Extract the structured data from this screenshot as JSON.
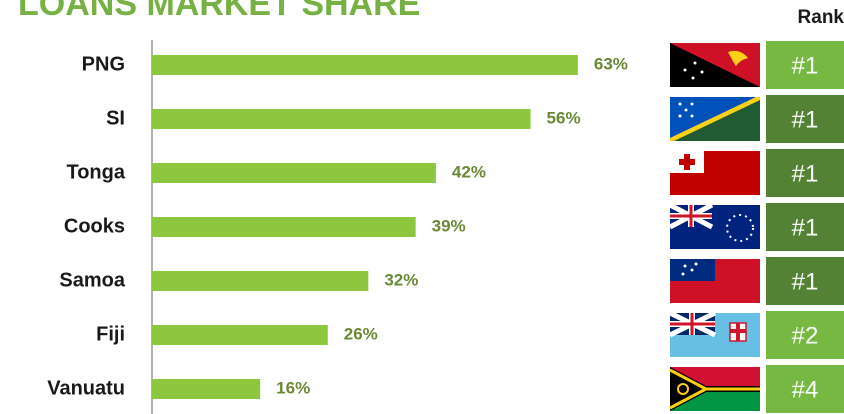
{
  "chart_data": {
    "type": "bar",
    "orientation": "horizontal",
    "title": "LOANS MARKET SHARE",
    "categories": [
      "PNG",
      "SI",
      "Tonga",
      "Cooks",
      "Samoa",
      "Fiji",
      "Vanuatu"
    ],
    "values": [
      63,
      56,
      42,
      39,
      32,
      26,
      16
    ],
    "value_labels": [
      "63%",
      "56%",
      "42%",
      "39%",
      "32%",
      "26%",
      "16%"
    ],
    "color": "#8dc63f",
    "rank_header": "Rank",
    "ranks": [
      "#1",
      "#1",
      "#1",
      "#1",
      "#1",
      "#2",
      "#4"
    ],
    "rank_colors": [
      "#77b843",
      "#548235",
      "#548235",
      "#548235",
      "#548235",
      "#77b843",
      "#77b843"
    ]
  }
}
